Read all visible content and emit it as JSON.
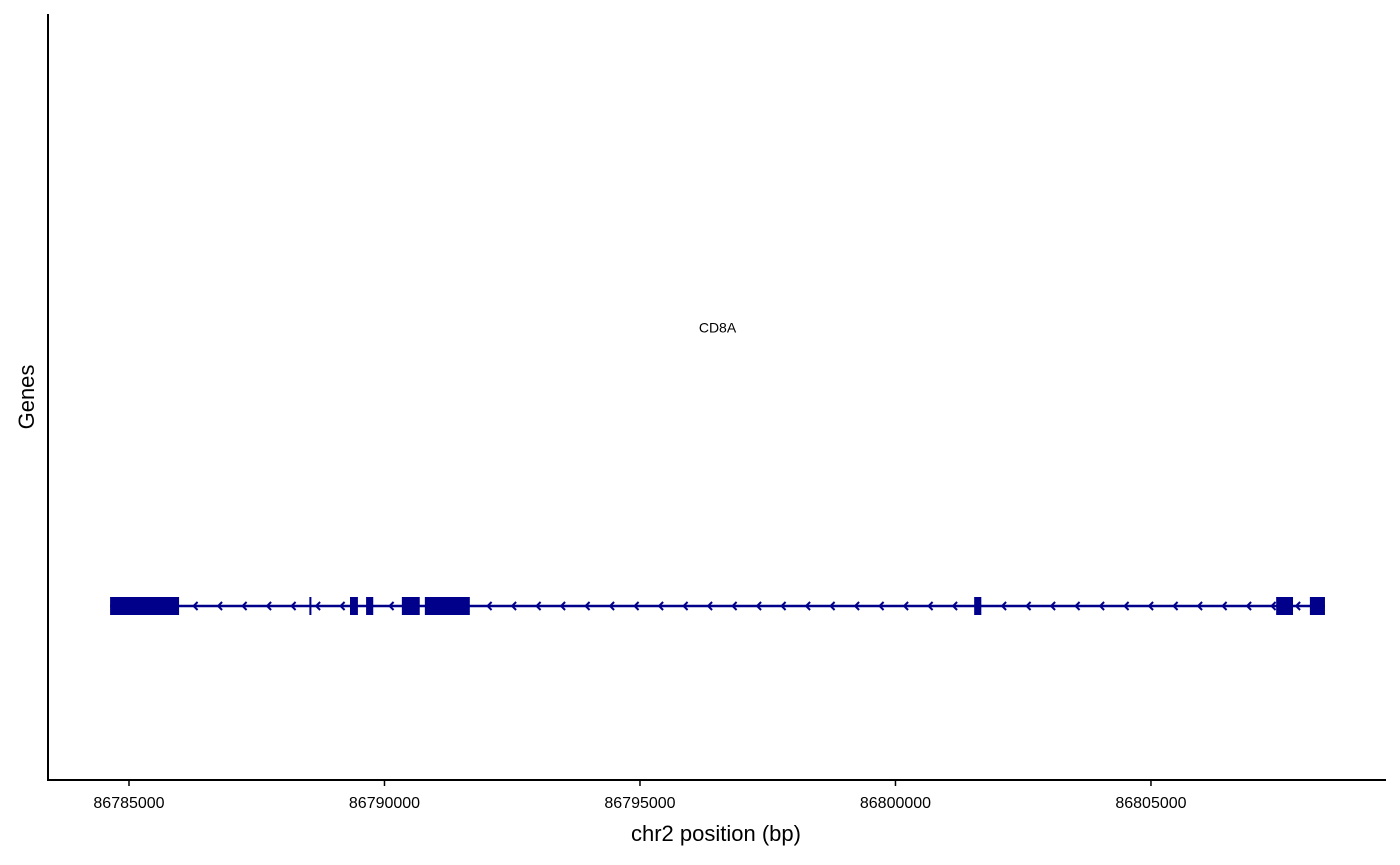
{
  "chart_data": {
    "type": "gene-track",
    "xlabel": "chr2 position (bp)",
    "ylabel": "Genes",
    "xlim": [
      86783415,
      86809580
    ],
    "xticks": [
      86785000,
      86790000,
      86795000,
      86800000,
      86805000
    ],
    "genes": [
      {
        "name": "CD8A",
        "start": 86784630,
        "end": 86808405,
        "strand": "-",
        "color": "#00008b",
        "exons": [
          [
            86784630,
            86785980
          ],
          [
            86788530,
            86788570
          ],
          [
            86789325,
            86789480
          ],
          [
            86789640,
            86789780
          ],
          [
            86790340,
            86790690
          ],
          [
            86790790,
            86791670
          ],
          [
            86801540,
            86801680
          ],
          [
            86807450,
            86807780
          ],
          [
            86808110,
            86808405
          ]
        ]
      }
    ]
  }
}
